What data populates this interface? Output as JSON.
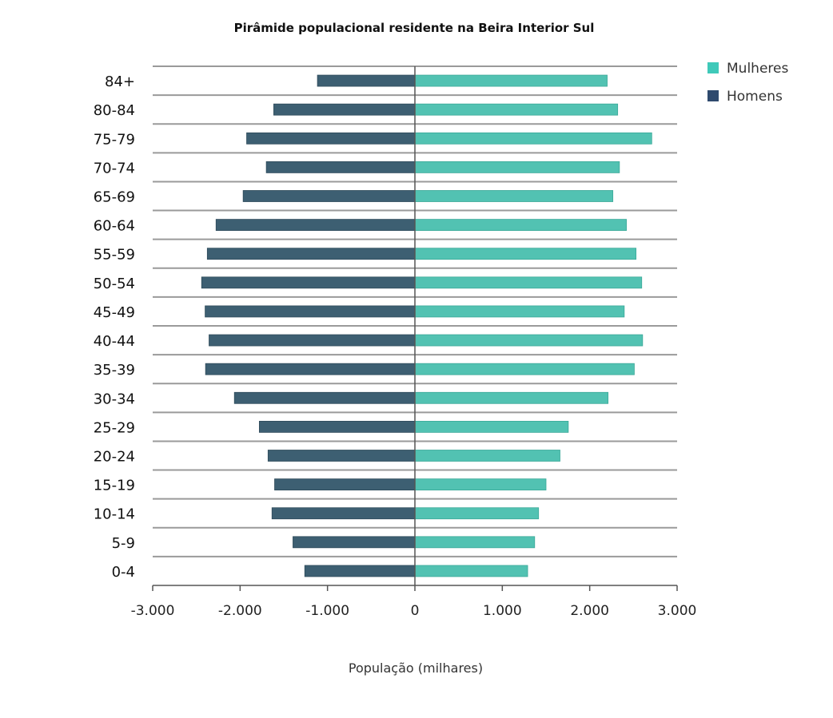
{
  "chart_data": {
    "type": "bar",
    "orientation": "horizontal",
    "title": "Pirâmide populacional residente na Beira Interior Sul",
    "xlabel": "População (milhares)",
    "ylabel": "",
    "xlim": [
      -3000,
      3000
    ],
    "xticks": [
      -3000,
      -2000,
      -1000,
      0,
      1000,
      2000,
      3000
    ],
    "xtick_labels": [
      "-3.000",
      "-2.000",
      "-1.000",
      "0",
      "1.000",
      "2.000",
      "3.000"
    ],
    "grid": true,
    "legend_position": "top-right",
    "categories": [
      "84+",
      "80-84",
      "75-79",
      "70-74",
      "65-69",
      "60-64",
      "55-59",
      "50-54",
      "45-49",
      "40-44",
      "35-39",
      "30-34",
      "25-29",
      "20-24",
      "15-19",
      "10-14",
      "5-9",
      "0-4"
    ],
    "series": [
      {
        "name": "Mulheres",
        "color": "#52c2b2",
        "legend_color": "#3fc9b9",
        "values": [
          2200,
          2320,
          2710,
          2340,
          2265,
          2420,
          2530,
          2595,
          2395,
          2605,
          2510,
          2210,
          1755,
          1660,
          1500,
          1415,
          1370,
          1290
        ]
      },
      {
        "name": "Homens",
        "color": "#3d5f72",
        "legend_color": "#2f4a6e",
        "values": [
          -1115,
          -1615,
          -1925,
          -1700,
          -1965,
          -2275,
          -2375,
          -2440,
          -2400,
          -2355,
          -2395,
          -2065,
          -1780,
          -1680,
          -1605,
          -1635,
          -1395,
          -1260
        ]
      }
    ]
  }
}
